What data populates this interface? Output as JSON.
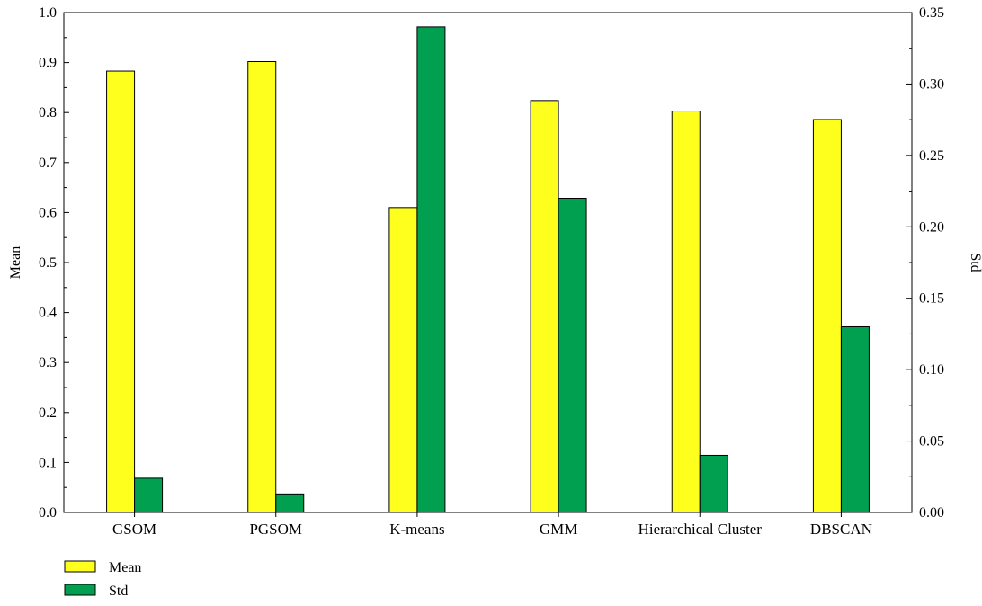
{
  "chart_data": {
    "type": "bar",
    "title": "",
    "categories": [
      "GSOM",
      "PGSOM",
      "K-means",
      "GMM",
      "Hierarchical Cluster",
      "DBSCAN"
    ],
    "series": [
      {
        "name": "Mean",
        "axis": "left",
        "color": "#ffff1e",
        "values": [
          0.883,
          0.902,
          0.61,
          0.824,
          0.803,
          0.786
        ]
      },
      {
        "name": "Std",
        "axis": "right",
        "color": "#00a050",
        "values": [
          0.024,
          0.013,
          0.34,
          0.22,
          0.04,
          0.13
        ]
      }
    ],
    "ylabel_left": "Mean",
    "ylabel_right": "Std",
    "ylim_left": [
      0,
      1.0
    ],
    "ylim_right": [
      0,
      0.35
    ],
    "yticks_left": [
      "0.0",
      "0.1",
      "0.2",
      "0.3",
      "0.4",
      "0.5",
      "0.6",
      "0.7",
      "0.8",
      "0.9",
      "1.0"
    ],
    "yticks_right": [
      "0.00",
      "0.05",
      "0.10",
      "0.15",
      "0.20",
      "0.25",
      "0.30",
      "0.35"
    ],
    "grid": false,
    "legend_placement": "bottom-left"
  }
}
